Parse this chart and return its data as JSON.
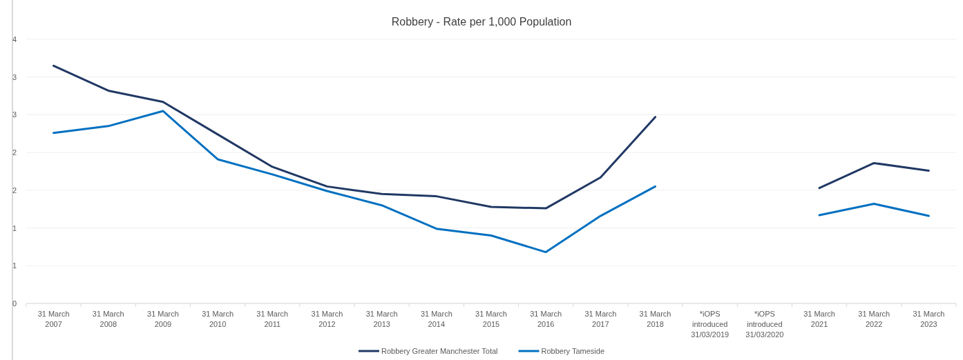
{
  "chart_data": {
    "type": "line",
    "title": "Robbery - Rate per 1,000 Population",
    "categories": [
      "31 March\n2007",
      "31 March\n2008",
      "31 March\n2009",
      "31 March\n2010",
      "31 March\n2011",
      "31 March\n2012",
      "31 March\n2013",
      "31 March\n2014",
      "31 March\n2015",
      "31 March\n2016",
      "31 March\n2017",
      "31 March\n2018",
      "*iOPS\nintroduced\n31/03/2019",
      "*iOPS\nintroduced\n31/03/2020",
      "31 March\n2021",
      "31 March\n2022",
      "31 March\n2023"
    ],
    "series": [
      {
        "name": "Robbery Greater Manchester Total",
        "color": "#203864",
        "values": [
          3.15,
          2.82,
          2.67,
          2.24,
          1.81,
          1.55,
          1.45,
          1.42,
          1.28,
          1.26,
          1.67,
          2.47,
          null,
          null,
          1.53,
          1.86,
          1.76
        ]
      },
      {
        "name": "Robbery Tameside",
        "color": "#0070c0",
        "values": [
          2.26,
          2.35,
          2.55,
          1.91,
          1.71,
          1.49,
          1.3,
          0.99,
          0.9,
          0.68,
          1.16,
          1.55,
          null,
          null,
          1.17,
          1.32,
          1.16
        ]
      }
    ],
    "ylim": [
      0,
      3.5
    ],
    "yticks": [
      0,
      {
        "value": 0.5,
        "label": "1"
      },
      1,
      {
        "value": 1.5,
        "label": "2"
      },
      2,
      {
        "value": 2.5,
        "label": "3"
      },
      3,
      {
        "value": 3.5,
        "label": "4"
      }
    ],
    "grid": "y",
    "legend": "bottom",
    "marker": "none",
    "line_style": "solid"
  }
}
